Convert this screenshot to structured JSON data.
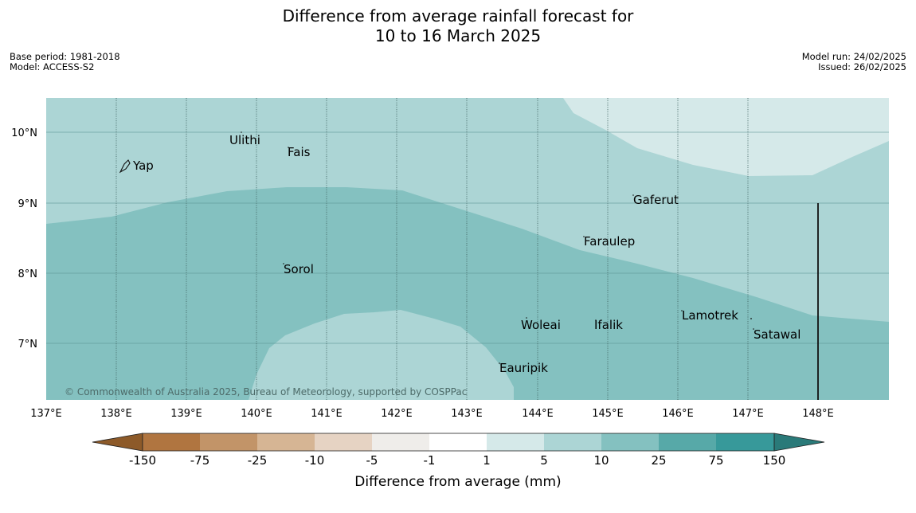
{
  "header": {
    "title_line1": "Difference from average rainfall forecast for",
    "title_line2": "10 to 16 March 2025",
    "base_period": "Base period: 1981-2018",
    "model": "Model: ACCESS-S2",
    "model_run": "Model run: 24/02/2025",
    "issued": "Issued: 26/02/2025"
  },
  "map": {
    "lon_ticks": [
      "137°E",
      "138°E",
      "139°E",
      "140°E",
      "141°E",
      "142°E",
      "143°E",
      "144°E",
      "145°E",
      "146°E",
      "147°E",
      "148°E"
    ],
    "lat_ticks": [
      "10°N",
      "9°N",
      "8°N",
      "7°N"
    ],
    "places": [
      {
        "name": "Yap"
      },
      {
        "name": "Ulithi"
      },
      {
        "name": "Fais"
      },
      {
        "name": "Gaferut"
      },
      {
        "name": "Faraulep"
      },
      {
        "name": "Sorol"
      },
      {
        "name": "Woleai"
      },
      {
        "name": "Ifalik"
      },
      {
        "name": "Lamotrek"
      },
      {
        "name": "Satawal"
      },
      {
        "name": "Eauripik"
      }
    ],
    "credit": "© Commonwealth of Australia 2025, Bureau of Meteorology, supported by COSPPac",
    "zone_colors": {
      "light": "#d5e9e9",
      "mid": "#acd5d5",
      "strong": "#84c1c0"
    }
  },
  "legend": {
    "ticks": [
      "-150",
      "-75",
      "-25",
      "-10",
      "-5",
      "-1",
      "1",
      "5",
      "10",
      "25",
      "75",
      "150"
    ],
    "colors": [
      "#8d5a29",
      "#b07540",
      "#c29468",
      "#d6b594",
      "#e6d3c3",
      "#efedea",
      "#ffffff",
      "#d5e9e9",
      "#acd5d5",
      "#84c1c0",
      "#57a9a8",
      "#37999a",
      "#2a7a79"
    ],
    "label": "Difference from average (mm)"
  }
}
